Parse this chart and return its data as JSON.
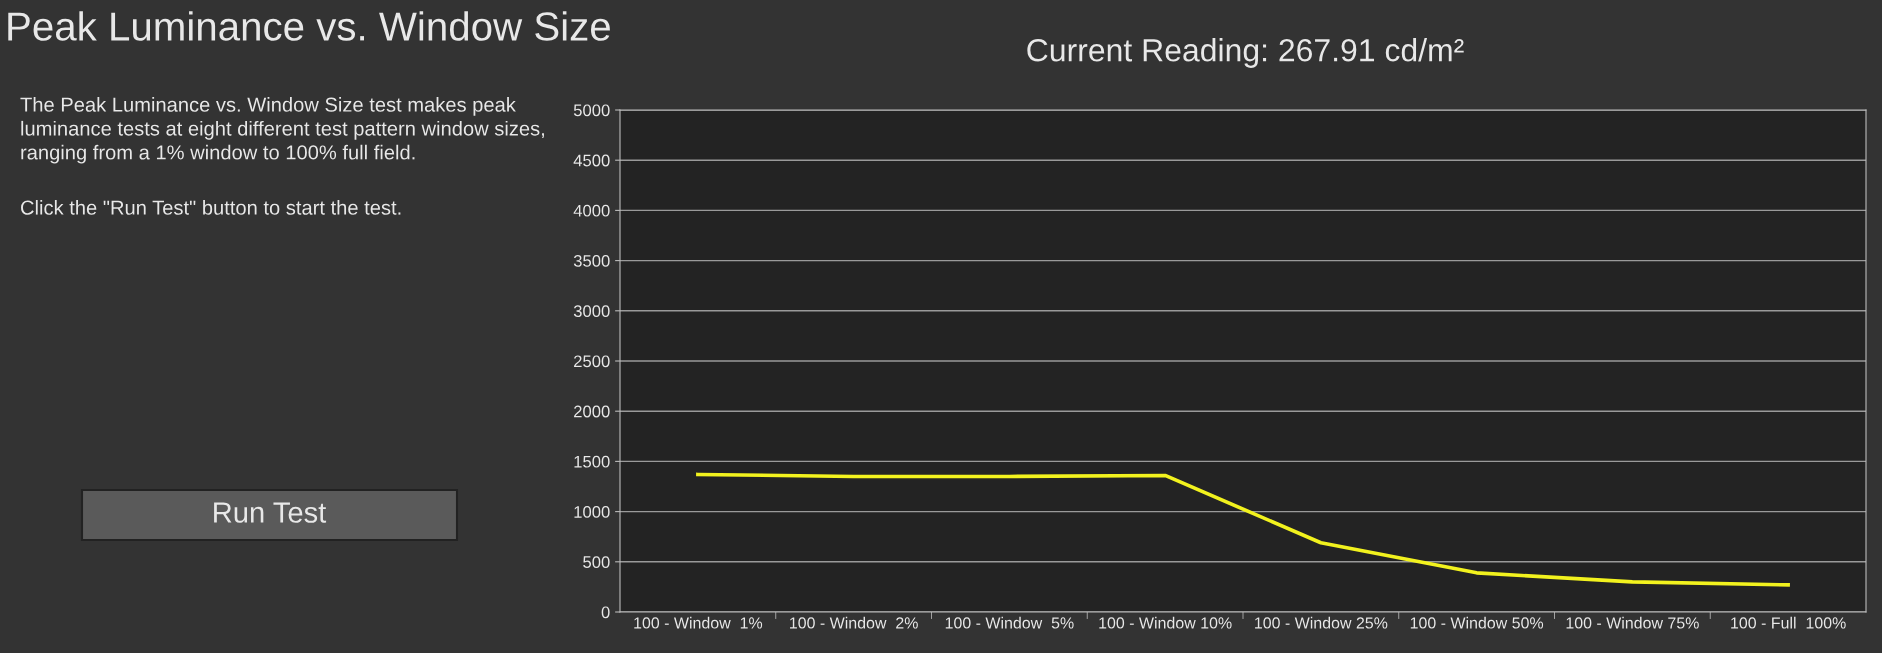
{
  "chart_data": {
    "type": "line",
    "title": "Peak Luminance vs. Window Size",
    "subtitle": "Current Reading: 267.91 cd/m²",
    "annotations": [
      "The Peak Luminance vs. Window Size test makes peak luminance tests at eight different test pattern window sizes, ranging from a 1% window to 100% full field.",
      "Click the \"Run Test\" button to start the test.",
      "Run Test"
    ],
    "categories": [
      "100 - Window  1%",
      "100 - Window  2%",
      "100 - Window  5%",
      "100 - Window 10%",
      "100 - Window 25%",
      "100 - Window 50%",
      "100 - Window 75%",
      "100 - Full  100%"
    ],
    "series": [
      {
        "color": "#f2f21e",
        "values": [
          1370,
          1350,
          1350,
          1360,
          690,
          390,
          300,
          270
        ]
      }
    ],
    "ylim": [
      0,
      5000
    ],
    "yticks": [
      0,
      500,
      1000,
      1500,
      2000,
      2500,
      3000,
      3500,
      4000,
      4500,
      5000
    ],
    "grid": "y",
    "marker": "none",
    "line_style": "solid"
  }
}
